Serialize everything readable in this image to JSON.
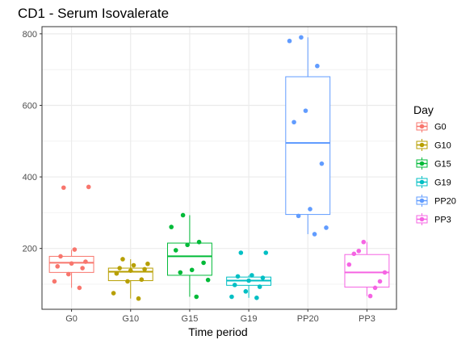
{
  "chart_data": {
    "type": "box",
    "title": "CD1 - Serum Isovalerate",
    "xlabel": "Time period",
    "ylabel": "",
    "ylim": [
      30,
      820
    ],
    "yticks": [
      200,
      400,
      600,
      800
    ],
    "grid": true,
    "legend": {
      "title": "Day",
      "placement": "right"
    },
    "categories": [
      "G0",
      "G10",
      "G15",
      "G19",
      "PP20",
      "PP3"
    ],
    "series": [
      {
        "name": "G0",
        "color": "#F8766D",
        "box": {
          "min": 90,
          "q1": 133,
          "median": 160,
          "q3": 178,
          "max": 196
        },
        "points": [
          370,
          372,
          197,
          178,
          163,
          158,
          150,
          145,
          128,
          108,
          90
        ]
      },
      {
        "name": "G10",
        "color": "#B79F00",
        "box": {
          "min": 60,
          "q1": 110,
          "median": 135,
          "q3": 145,
          "max": 170
        },
        "points": [
          170,
          157,
          153,
          145,
          142,
          138,
          130,
          113,
          108,
          75,
          60
        ]
      },
      {
        "name": "G15",
        "color": "#00BA38",
        "box": {
          "min": 65,
          "q1": 125,
          "median": 178,
          "q3": 215,
          "max": 293
        },
        "points": [
          293,
          260,
          218,
          210,
          195,
          160,
          140,
          133,
          112,
          65
        ]
      },
      {
        "name": "G19",
        "color": "#00BFC4",
        "box": {
          "min": 62,
          "q1": 97,
          "median": 110,
          "q3": 120,
          "max": 125
        },
        "points": [
          188,
          188,
          125,
          122,
          118,
          110,
          98,
          93,
          80,
          65,
          62
        ]
      },
      {
        "name": "PP20",
        "color": "#619CFF",
        "box": {
          "min": 240,
          "q1": 295,
          "median": 495,
          "q3": 680,
          "max": 790
        },
        "points": [
          790,
          780,
          710,
          585,
          553,
          437,
          310,
          291,
          258,
          240
        ]
      },
      {
        "name": "PP3",
        "color": "#F564E3",
        "box": {
          "min": 67,
          "q1": 92,
          "median": 133,
          "q3": 183,
          "max": 218
        },
        "points": [
          218,
          193,
          185,
          155,
          133,
          108,
          90,
          67
        ]
      }
    ]
  }
}
